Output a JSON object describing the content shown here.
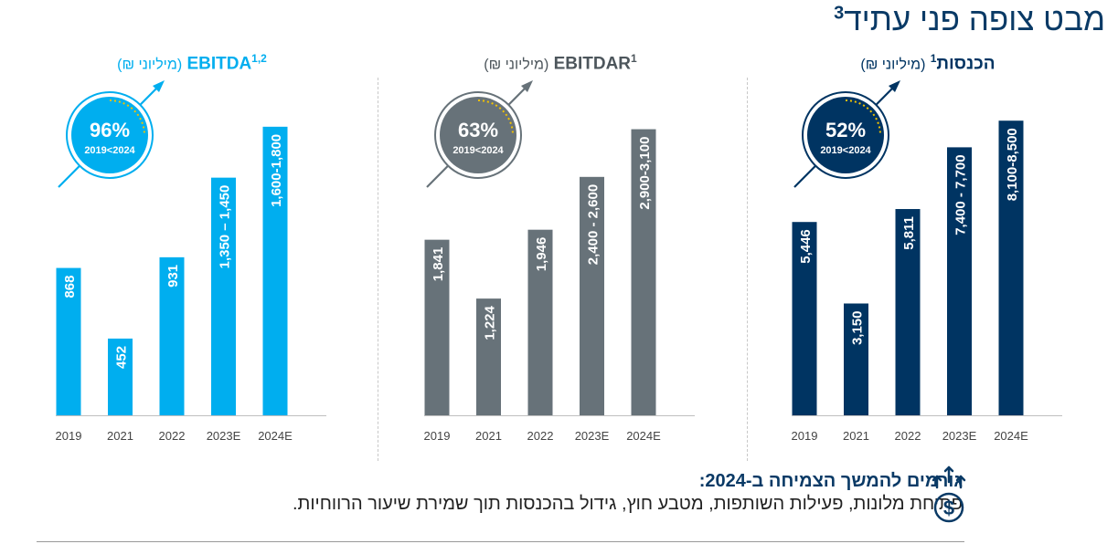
{
  "title": "מבט צופה פני עתיד",
  "title_sup": "3",
  "chart_data": [
    {
      "type": "bar",
      "metric": "הכנסות",
      "metric_sup": "1",
      "unit": "(מיליוני ₪)",
      "categories": [
        "2019",
        "2021",
        "2022",
        "2023E",
        "2024E"
      ],
      "values": [
        5446,
        3150,
        5811,
        7550,
        8300
      ],
      "value_labels": [
        "5,446",
        "3,150",
        "5,811",
        "7,400 - 7,700",
        "8,100-8,500"
      ],
      "ylim": [
        0,
        9000
      ],
      "color": "#003462",
      "circle_color": "#003462",
      "growth": "52%",
      "growth_label": "2019<2024"
    },
    {
      "type": "bar",
      "metric": "EBITDAR",
      "metric_sup": "1",
      "unit": "(מיליוני ₪)",
      "categories": [
        "2019",
        "2021",
        "2022",
        "2023E",
        "2024E"
      ],
      "values": [
        1841,
        1224,
        1946,
        2500,
        3000
      ],
      "value_labels": [
        "1,841",
        "1,224",
        "1,946",
        "2,400 - 2,600",
        "2,900-3,100"
      ],
      "ylim": [
        0,
        3350
      ],
      "color": "#677279",
      "circle_color": "#677279",
      "growth": "63%",
      "growth_label": "2019<2024"
    },
    {
      "type": "bar",
      "metric": "EBITDA",
      "metric_sup": "1,2",
      "unit": "(מיליוני ₪)",
      "categories": [
        "2019",
        "2021",
        "2022",
        "2023E",
        "2024E"
      ],
      "values": [
        868,
        452,
        931,
        1400,
        1700
      ],
      "value_labels": [
        "868",
        "452",
        "931",
        "1,350 – 1,450",
        "1,600-1,800"
      ],
      "ylim": [
        0,
        1882
      ],
      "color": "#00aeef",
      "circle_color": "#00aeef",
      "growth": "96%",
      "growth_label": "2019<2024"
    }
  ],
  "footer": {
    "heading": "גורמים להמשך הצמיחה  ב-2024:",
    "body": "פתיחת מלונות, פעילות השותפות, מטבע חוץ, גידול בהכנסות תוך שמירת שיעור הרווחיות."
  }
}
